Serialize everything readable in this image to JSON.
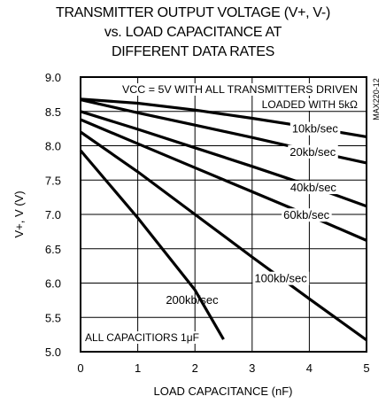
{
  "title_lines": [
    "TRANSMITTER OUTPUT VOLTAGE (V+, V-)",
    "vs. LOAD CAPACITANCE AT",
    "DIFFERENT DATA RATES"
  ],
  "chart_data": {
    "type": "line",
    "xlabel": "LOAD CAPACITANCE (nF)",
    "ylabel": "V+, V (V)",
    "xlim": [
      0,
      5
    ],
    "ylim": [
      5.0,
      9.0
    ],
    "x_ticks": [
      "0",
      "1",
      "2",
      "3",
      "4",
      "5"
    ],
    "y_ticks": [
      "9.0",
      "8.5",
      "8.0",
      "7.5",
      "7.0",
      "6.5",
      "6.0",
      "5.5",
      "5.0"
    ],
    "grid": true,
    "chart_id": "MAX220-12",
    "annotations": {
      "condition_line1": "VCC = 5V WITH ALL TRANSMITTERS DRIVEN",
      "condition_line2": "LOADED WITH 5kΩ",
      "capacitors": "ALL CAPACITIORS 1μF"
    },
    "series": [
      {
        "name": "10kb/sec",
        "x": [
          0,
          1,
          2,
          3,
          4,
          5
        ],
        "y": [
          8.68,
          8.62,
          8.52,
          8.4,
          8.27,
          8.13
        ]
      },
      {
        "name": "20kb/sec",
        "x": [
          0,
          1,
          2,
          3,
          4,
          5
        ],
        "y": [
          8.67,
          8.48,
          8.3,
          8.12,
          7.93,
          7.75
        ]
      },
      {
        "name": "40kb/sec",
        "x": [
          0,
          1,
          2,
          3,
          4,
          5
        ],
        "y": [
          8.5,
          8.24,
          7.97,
          7.7,
          7.42,
          7.12
        ]
      },
      {
        "name": "60kb/sec",
        "x": [
          0,
          1,
          2,
          3,
          4,
          5
        ],
        "y": [
          8.38,
          8.03,
          7.68,
          7.33,
          6.98,
          6.62
        ]
      },
      {
        "name": "100kb/sec",
        "x": [
          0,
          1,
          2,
          3,
          4,
          5
        ],
        "y": [
          8.2,
          7.62,
          7.0,
          6.38,
          5.77,
          5.17
        ]
      },
      {
        "name": "200kb/sec",
        "x": [
          0,
          1,
          2,
          2.5
        ],
        "y": [
          7.93,
          6.95,
          5.9,
          5.18
        ]
      }
    ]
  }
}
